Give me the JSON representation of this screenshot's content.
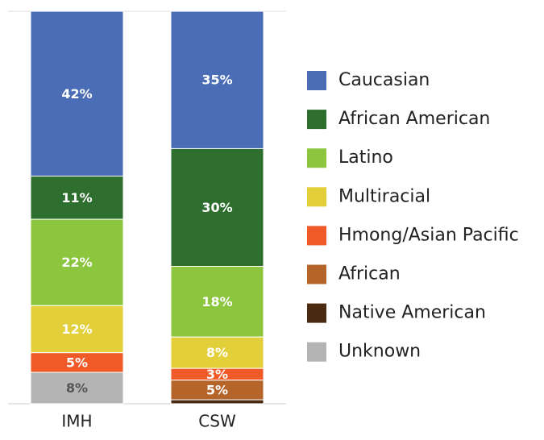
{
  "chart_data": {
    "type": "stacked_bar",
    "categories": [
      "IMH",
      "CSW"
    ],
    "ylim": [
      0,
      100
    ],
    "series": [
      {
        "name": "Caucasian",
        "color": "#4a6db5",
        "values": [
          42,
          35
        ],
        "value_labels": [
          "42%",
          "35%"
        ]
      },
      {
        "name": "African American",
        "color": "#2e6e2e",
        "values": [
          11,
          30
        ],
        "value_labels": [
          "11%",
          "30%"
        ]
      },
      {
        "name": "Latino",
        "color": "#8cc63f",
        "values": [
          22,
          18
        ],
        "value_labels": [
          "22%",
          "18%"
        ]
      },
      {
        "name": "Multiracial",
        "color": "#e3cf3a",
        "values": [
          12,
          8
        ],
        "value_labels": [
          "12%",
          "8%"
        ]
      },
      {
        "name": "Hmong/Asian Pacific",
        "color": "#f05a28",
        "values": [
          5,
          3
        ],
        "value_labels": [
          "5%",
          "3%"
        ]
      },
      {
        "name": "African",
        "color": "#b5652a",
        "values": [
          0,
          5
        ],
        "value_labels": [
          null,
          "5%"
        ]
      },
      {
        "name": "Native American",
        "color": "#4a2a10",
        "values": [
          0,
          1
        ],
        "value_labels": [
          null,
          null
        ]
      },
      {
        "name": "Unknown",
        "color": "#b4b4b4",
        "values": [
          8,
          0
        ],
        "value_labels": [
          "8%",
          null
        ]
      }
    ]
  }
}
